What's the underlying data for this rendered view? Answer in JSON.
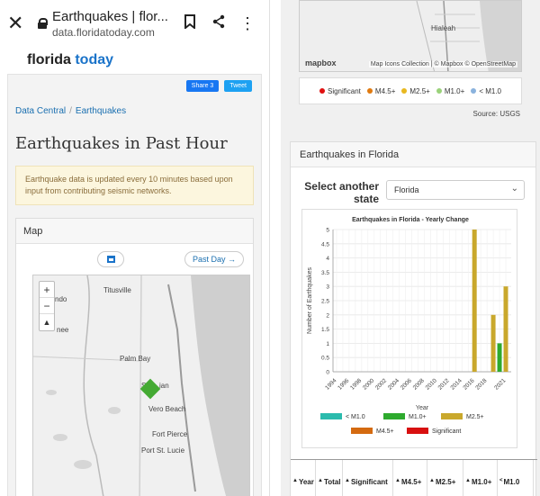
{
  "browser": {
    "page_title": "Earthquakes | flor...",
    "url": "data.floridatoday.com"
  },
  "brand": {
    "part1": "florida",
    "part2": "today"
  },
  "share": {
    "facebook": "Share 3",
    "twitter": "Tweet"
  },
  "breadcrumb": {
    "item1": "Data Central",
    "item2": "Earthquakes"
  },
  "heading": "Earthquakes in Past Hour",
  "notice": "Earthquake data is updated every 10 minutes based upon input from contributing seismic networks.",
  "map_card": {
    "title": "Map",
    "past_day": "Past Day →",
    "labels": [
      "Titusville",
      "ndo",
      "nee",
      "Palm Bay",
      "Se",
      "ian",
      "Vero Beach",
      "Fort Pierce",
      "Port St. Lucie"
    ]
  },
  "right_map": {
    "label": "Hialeah",
    "logo": "mapbox",
    "attribution": "Map Icons Collection | © Mapbox © OpenStreetMap"
  },
  "legend": [
    {
      "label": "Significant",
      "color": "#e01010"
    },
    {
      "label": "M4.5+",
      "color": "#e07a10"
    },
    {
      "label": "M2.5+",
      "color": "#e8b820"
    },
    {
      "label": "M1.0+",
      "color": "#9ad27a"
    },
    {
      "label": "< M1.0",
      "color": "#8ab2dd"
    }
  ],
  "source": "Source: USGS",
  "florida_card": {
    "title": "Earthquakes in Florida",
    "select_label": "Select another state",
    "selected_state": "Florida"
  },
  "chart_data": {
    "type": "bar",
    "title": "Earthquakes in Florida - Yearly Change",
    "xlabel": "Year",
    "ylabel": "Number of Earthquakes",
    "ylim": [
      0,
      5
    ],
    "yticks": [
      0,
      0.5,
      1,
      1.5,
      2,
      2.5,
      3,
      3.5,
      4,
      4.5,
      5
    ],
    "x_tick_labels": [
      "1994",
      "1996",
      "1998",
      "2000",
      "2002",
      "2004",
      "2006",
      "2008",
      "2010",
      "2012",
      "2014",
      "2016",
      "2018",
      "2021"
    ],
    "categories": [
      1994,
      1995,
      1996,
      1997,
      1998,
      1999,
      2000,
      2001,
      2002,
      2003,
      2004,
      2005,
      2006,
      2007,
      2008,
      2009,
      2010,
      2011,
      2012,
      2013,
      2014,
      2015,
      2016,
      2017,
      2018,
      2019,
      2020,
      2021
    ],
    "series": [
      {
        "name": "< M1.0",
        "color": "#2bbbad",
        "values": [
          0,
          0,
          0,
          0,
          0,
          0,
          0,
          0,
          0,
          0,
          0,
          0,
          0,
          0,
          0,
          0,
          0,
          0,
          0,
          0,
          0,
          0,
          0,
          0,
          0,
          0,
          0,
          0
        ]
      },
      {
        "name": "M1.0+",
        "color": "#2eaa2e",
        "values": [
          0,
          0,
          0,
          0,
          0,
          0,
          0,
          0,
          0,
          0,
          0,
          0,
          0,
          0,
          0,
          0,
          0,
          0,
          0,
          0,
          0,
          0,
          0,
          0,
          0,
          0,
          1,
          0
        ]
      },
      {
        "name": "M2.5+",
        "color": "#c9a82c",
        "values": [
          0,
          0,
          0,
          0,
          0,
          0,
          0,
          0,
          0,
          0,
          0,
          0,
          0,
          0,
          0,
          0,
          0,
          0,
          0,
          0,
          0,
          0,
          5,
          0,
          0,
          2,
          0,
          3
        ]
      },
      {
        "name": "M4.5+",
        "color": "#d46a10",
        "values": [
          0,
          0,
          0,
          0,
          0,
          0,
          0,
          0,
          0,
          0,
          0,
          0,
          0,
          0,
          0,
          0,
          0,
          0,
          0,
          0,
          0,
          0,
          0,
          0,
          0,
          0,
          0,
          0
        ]
      },
      {
        "name": "Significant",
        "color": "#d81010",
        "values": [
          0,
          0,
          0,
          0,
          0,
          0,
          0,
          0,
          0,
          0,
          0,
          0,
          0,
          0,
          0,
          0,
          0,
          0,
          0,
          0,
          0,
          0,
          0,
          0,
          0,
          0,
          0,
          0
        ]
      }
    ],
    "legend_position": "bottom",
    "grid": true
  },
  "table_headers": [
    "Year",
    "Total",
    "Significant",
    "M4.5+",
    "M2.5+",
    "M1.0+",
    "M1.0"
  ]
}
